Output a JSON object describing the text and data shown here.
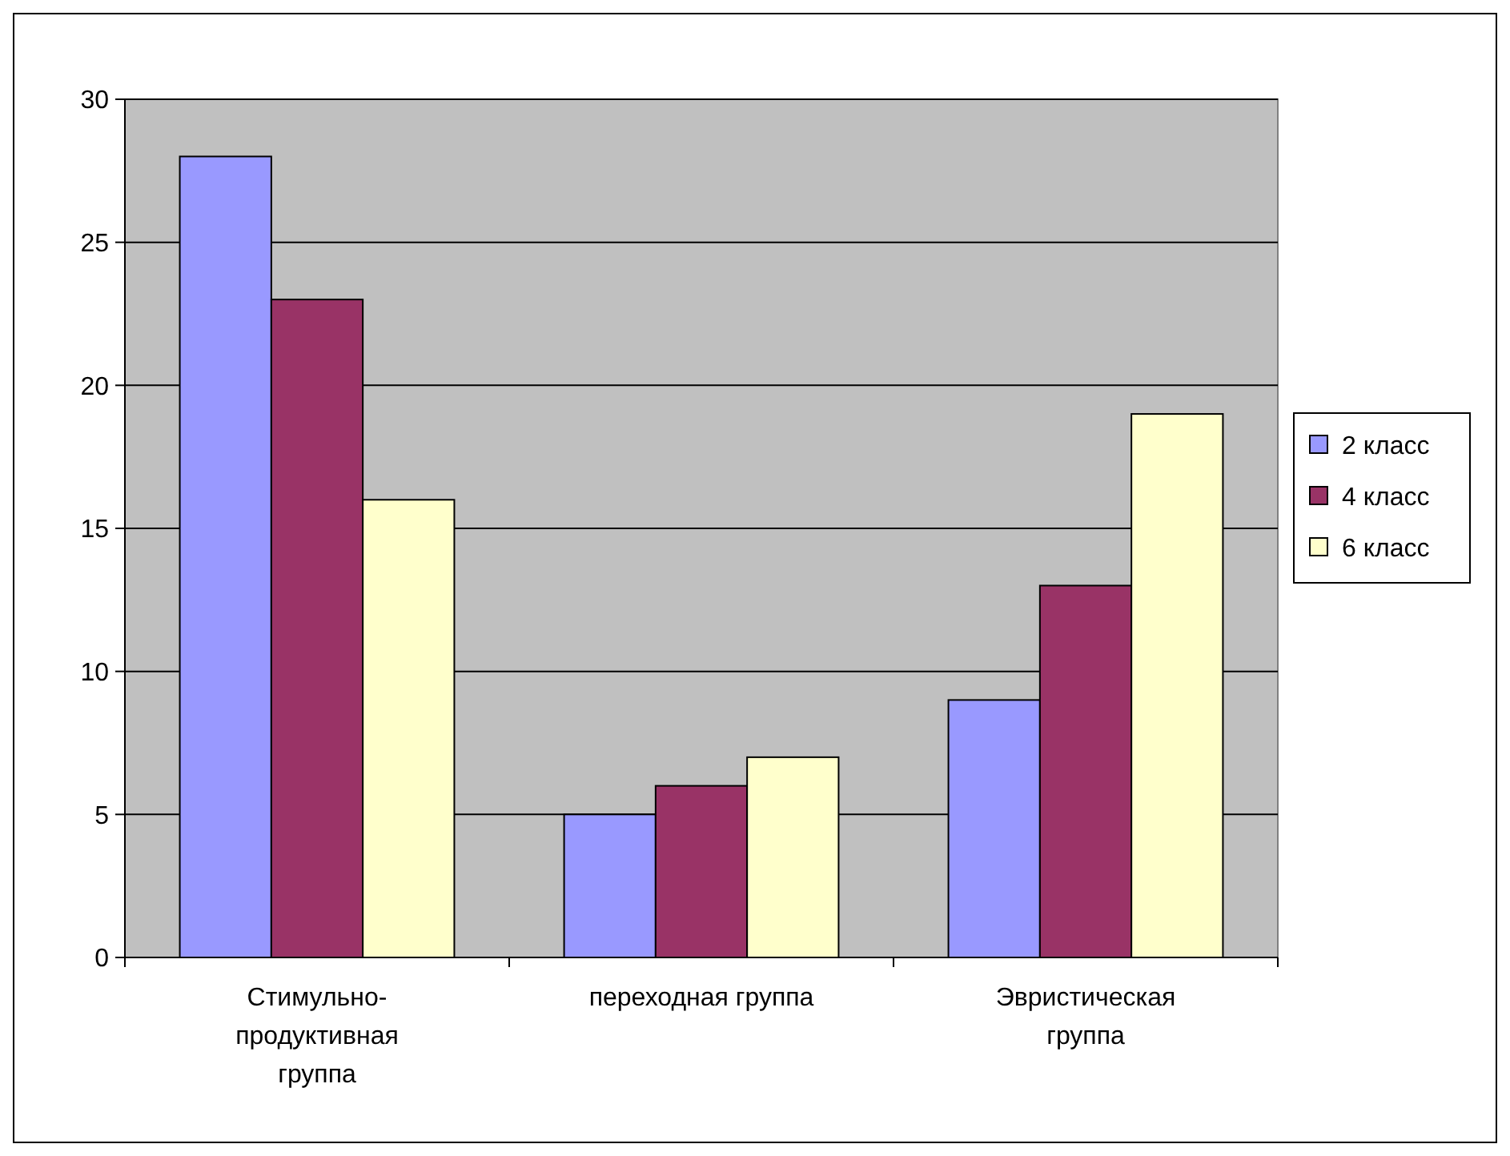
{
  "chart_data": {
    "type": "bar",
    "categories": [
      "Стимульно-продуктивная группа",
      "переходная группа",
      "Эвристическая группа"
    ],
    "series": [
      {
        "name": "2 класс",
        "color": "#9999ff",
        "values": [
          28,
          5,
          9
        ]
      },
      {
        "name": "4 класс",
        "color": "#993366",
        "values": [
          23,
          6,
          13
        ]
      },
      {
        "name": "6 класс",
        "color": "#ffffcc",
        "values": [
          16,
          7,
          19
        ]
      }
    ],
    "ylim": [
      0,
      30
    ],
    "yticks": [
      0,
      5,
      10,
      15,
      20,
      25,
      30
    ],
    "grid": "y",
    "legend": "right"
  }
}
